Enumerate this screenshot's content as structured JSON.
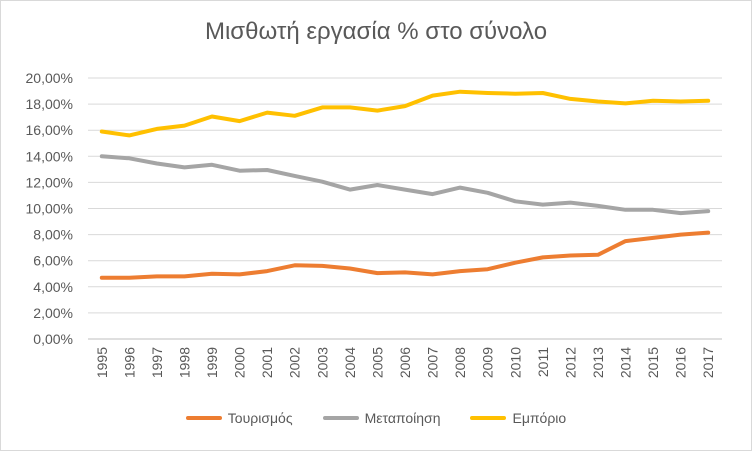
{
  "chart_data": {
    "type": "line",
    "title": "Μισθωτή εργασία % στο σύνολο",
    "x": [
      "1995",
      "1996",
      "1997",
      "1998",
      "1999",
      "2000",
      "2001",
      "2002",
      "2003",
      "2004",
      "2005",
      "2006",
      "2007",
      "2008",
      "2009",
      "2010",
      "2011",
      "2012",
      "2013",
      "2014",
      "2015",
      "2016",
      "2017"
    ],
    "ylim": [
      0,
      20
    ],
    "yticks": [
      "0,00%",
      "2,00%",
      "4,00%",
      "6,00%",
      "8,00%",
      "10,00%",
      "12,00%",
      "14,00%",
      "16,00%",
      "18,00%",
      "20,00%"
    ],
    "grid": true,
    "legend_position": "bottom",
    "series": [
      {
        "name": "Τουρισμός",
        "color": "#ED7D31",
        "values": [
          4.7,
          4.7,
          4.8,
          4.8,
          5.0,
          4.95,
          5.2,
          5.65,
          5.6,
          5.4,
          5.05,
          5.1,
          4.95,
          5.2,
          5.35,
          5.85,
          6.25,
          6.4,
          6.45,
          7.5,
          7.75,
          8.0,
          8.15
        ]
      },
      {
        "name": "Μεταποίηση",
        "color": "#A5A5A5",
        "values": [
          14.0,
          13.85,
          13.45,
          13.15,
          13.35,
          12.9,
          12.95,
          12.5,
          12.05,
          11.45,
          11.8,
          11.45,
          11.1,
          11.6,
          11.2,
          10.55,
          10.3,
          10.45,
          10.2,
          9.9,
          9.9,
          9.65,
          9.8
        ]
      },
      {
        "name": "Εμπόριο",
        "color": "#FFC000",
        "values": [
          15.9,
          15.6,
          16.1,
          16.35,
          17.05,
          16.7,
          17.35,
          17.1,
          17.75,
          17.75,
          17.5,
          17.85,
          18.65,
          18.95,
          18.85,
          18.8,
          18.85,
          18.4,
          18.2,
          18.05,
          18.25,
          18.2,
          18.25
        ]
      }
    ]
  }
}
